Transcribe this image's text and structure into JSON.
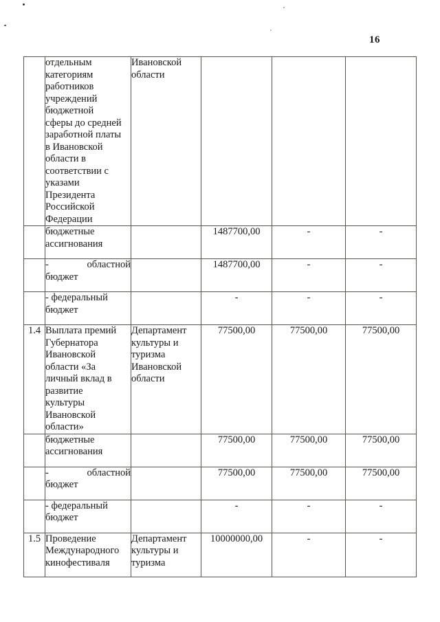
{
  "page": {
    "number": "16"
  },
  "colors": {
    "text": "#181818",
    "border": "#555550",
    "background": "#fefefe"
  },
  "table": {
    "rows": [
      {
        "kind": "entry-continuation",
        "num": "",
        "desc": "отдельным\nкатегориям\nработников\nучреждений\nбюджетной\nсферы до средней\nзаработной платы\nв Ивановской\nобласти в\nсоответствии с\nуказами\nПрезидента\nРоссийской\nФедерации",
        "dept": "Ивановской\nобласти",
        "values": [
          "",
          "",
          ""
        ]
      },
      {
        "kind": "detail",
        "num": "",
        "desc": "бюджетные\nассигнования",
        "dept": "",
        "values": [
          "1487700,00",
          "-",
          "-"
        ]
      },
      {
        "kind": "detail",
        "num": "",
        "desc_flex": {
          "left": "-",
          "right": "областной"
        },
        "desc_rest": "бюджет",
        "dept": "",
        "values": [
          "1487700,00",
          "-",
          "-"
        ]
      },
      {
        "kind": "detail",
        "num": "",
        "desc": "- федеральный\nбюджет",
        "dept": "",
        "values": [
          "-",
          "-",
          "-"
        ]
      },
      {
        "kind": "entry",
        "num": "1.4",
        "desc": "Выплата премий\nГубернатора\nИвановской\nобласти «За\nличный вклад в\nразвитие\nкультуры\nИвановской\nобласти»",
        "dept": "Департамент\nкультуры и\nтуризма\nИвановской\nобласти",
        "values": [
          "77500,00",
          "77500,00",
          "77500,00"
        ]
      },
      {
        "kind": "detail",
        "num": "",
        "desc": "бюджетные\nассигнования",
        "dept": "",
        "values": [
          "77500,00",
          "77500,00",
          "77500,00"
        ]
      },
      {
        "kind": "detail",
        "num": "",
        "desc_flex": {
          "left": "-",
          "right": "областной"
        },
        "desc_rest": "бюджет",
        "dept": "",
        "values": [
          "77500,00",
          "77500,00",
          "77500,00"
        ]
      },
      {
        "kind": "detail",
        "num": "",
        "desc": "- федеральный\nбюджет",
        "dept": "",
        "values": [
          "-",
          "-",
          "-"
        ]
      },
      {
        "kind": "entry-last",
        "num": "1.5",
        "desc": "Проведение\nМеждународного\nкинофестиваля",
        "dept": "Департамент\nкультуры и\nтуризма",
        "values": [
          "10000000,00",
          "-",
          "-"
        ]
      }
    ]
  }
}
